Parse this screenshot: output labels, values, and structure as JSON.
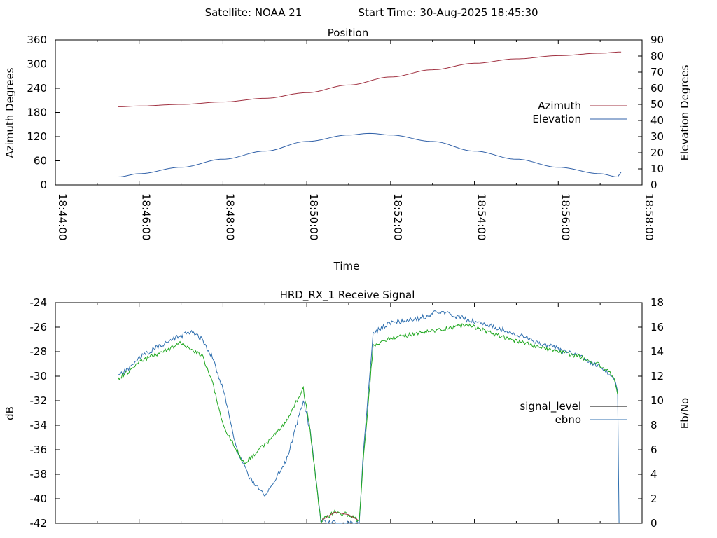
{
  "header": {
    "satellite": "Satellite: NOAA 21",
    "start_time": "Start Time: 30-Aug-2025 18:45:30"
  },
  "colors": {
    "azimuth": "#a03040",
    "elevation": "#3060a8",
    "signal_level": "#20a820",
    "ebno": "#3070b0",
    "signal_legend": "#000000",
    "ebno_legend": "#3070b0",
    "dropout": "#a03040"
  },
  "chart_data": [
    {
      "type": "line",
      "title": "Position",
      "xlabel": "Time",
      "ylabel": "Azimuth Degrees",
      "y2label": "Elevation Degrees",
      "xlim": [
        "18:44:00",
        "18:58:00"
      ],
      "xticks": [
        "18:44:00",
        "18:46:00",
        "18:48:00",
        "18:50:00",
        "18:52:00",
        "18:54:00",
        "18:56:00",
        "18:58:00"
      ],
      "ylim": [
        0,
        360
      ],
      "yticks": [
        "0",
        "60",
        "120",
        "180",
        "240",
        "300",
        "360"
      ],
      "y2lim": [
        0,
        90
      ],
      "y2ticks": [
        "0",
        "10",
        "20",
        "30",
        "40",
        "50",
        "60",
        "70",
        "80",
        "90"
      ],
      "legend_position": "right",
      "series": [
        {
          "name": "Azimuth",
          "axis": "left",
          "x": [
            "18:45:30",
            "18:46:00",
            "18:47:00",
            "18:48:00",
            "18:49:00",
            "18:50:00",
            "18:51:00",
            "18:52:00",
            "18:53:00",
            "18:54:00",
            "18:55:00",
            "18:56:00",
            "18:57:00",
            "18:57:30"
          ],
          "values": [
            194,
            196,
            200,
            206,
            215,
            229,
            248,
            268,
            286,
            302,
            313,
            321,
            327,
            330
          ]
        },
        {
          "name": "Elevation",
          "axis": "right",
          "x": [
            "18:45:30",
            "18:46:00",
            "18:47:00",
            "18:48:00",
            "18:49:00",
            "18:50:00",
            "18:51:00",
            "18:51:30",
            "18:52:00",
            "18:53:00",
            "18:54:00",
            "18:55:00",
            "18:56:00",
            "18:57:00",
            "18:57:25",
            "18:57:30"
          ],
          "values": [
            5,
            7,
            11,
            16,
            21,
            27,
            31,
            32,
            31,
            27,
            21,
            16,
            11,
            7,
            5,
            8
          ]
        }
      ]
    },
    {
      "type": "line",
      "title": "HRD_RX_1 Receive Signal",
      "ylabel": "dB",
      "y2label": "Eb/No",
      "xlim": [
        "18:44:00",
        "18:58:00"
      ],
      "ylim": [
        -42,
        -24
      ],
      "yticks": [
        "-24",
        "-26",
        "-28",
        "-30",
        "-32",
        "-34",
        "-36",
        "-38",
        "-40",
        "-42"
      ],
      "y2lim": [
        0,
        18
      ],
      "y2ticks": [
        "0",
        "2",
        "4",
        "6",
        "8",
        "10",
        "12",
        "14",
        "16",
        "18"
      ],
      "legend_position": "right",
      "series": [
        {
          "name": "signal_level",
          "axis": "left",
          "x": [
            "18:45:30",
            "18:45:45",
            "18:46:00",
            "18:46:30",
            "18:47:00",
            "18:47:30",
            "18:47:45",
            "18:48:00",
            "18:48:30",
            "18:49:00",
            "18:49:30",
            "18:49:55",
            "18:50:05",
            "18:50:20",
            "18:50:40",
            "18:51:00",
            "18:51:15",
            "18:51:20",
            "18:51:35",
            "18:52:00",
            "18:53:00",
            "18:53:50",
            "18:54:30",
            "18:55:30",
            "18:56:30",
            "18:57:00",
            "18:57:20",
            "18:57:25"
          ],
          "values": [
            -30.2,
            -29.6,
            -28.8,
            -28.1,
            -27.3,
            -28.3,
            -30.5,
            -34.0,
            -37.1,
            -35.6,
            -33.8,
            -31.0,
            -34.5,
            -41.8,
            -41.1,
            -41.3,
            -41.8,
            -37.5,
            -27.5,
            -26.9,
            -26.3,
            -25.8,
            -26.6,
            -27.6,
            -28.4,
            -29.1,
            -30.0,
            -31.5
          ]
        },
        {
          "name": "ebno",
          "axis": "right",
          "x": [
            "18:45:30",
            "18:45:45",
            "18:46:00",
            "18:46:30",
            "18:47:00",
            "18:47:15",
            "18:47:30",
            "18:47:45",
            "18:48:00",
            "18:48:20",
            "18:48:35",
            "18:49:00",
            "18:49:30",
            "18:49:55",
            "18:50:05",
            "18:50:20",
            "18:50:40",
            "18:51:00",
            "18:51:15",
            "18:51:20",
            "18:51:35",
            "18:52:00",
            "18:52:40",
            "18:53:10",
            "18:53:50",
            "18:54:30",
            "18:55:30",
            "18:56:30",
            "18:57:00",
            "18:57:20",
            "18:57:25",
            "18:57:27"
          ],
          "values": [
            12.0,
            12.6,
            13.5,
            14.5,
            15.3,
            15.6,
            15.0,
            13.5,
            11.0,
            6.0,
            4.0,
            2.2,
            5.0,
            10.0,
            7.5,
            0.2,
            0.0,
            0.0,
            0.0,
            5.0,
            15.5,
            16.4,
            16.7,
            17.3,
            16.6,
            16.0,
            14.8,
            13.6,
            12.8,
            11.8,
            10.8,
            0.0
          ]
        }
      ]
    }
  ]
}
